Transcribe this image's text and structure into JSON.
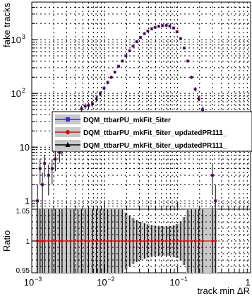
{
  "chart_data": [
    {
      "type": "scatter",
      "title": "",
      "ylabel": "fake tracks",
      "xlabel": "",
      "xscale": "log",
      "yscale": "log",
      "xlim": [
        0.001,
        1
      ],
      "ylim": [
        0.7,
        5000
      ],
      "grid": true,
      "x_ticks": [
        {
          "base": "10",
          "exp": "−3"
        },
        {
          "base": "10",
          "exp": "−2"
        },
        {
          "base": "10",
          "exp": "−1"
        },
        {
          "base": "1",
          "exp": ""
        }
      ],
      "y_ticks": [
        {
          "value": 1,
          "base": "1",
          "exp": ""
        },
        {
          "value": 10,
          "base": "10",
          "exp": ""
        },
        {
          "value": 100,
          "base": "10",
          "exp": "2"
        },
        {
          "value": 1000,
          "base": "10",
          "exp": "3"
        }
      ],
      "legend": {
        "placement": "center-right",
        "entries": [
          "DQM_ttbarPU_mkFit_5iter",
          "DQM_ttbarPU_mkFit_5iter_updatedPR111_",
          "DQM_ttbarPU_mkFit_5iter_updatedPR111_"
        ]
      },
      "series": [
        {
          "color": "#3030d0",
          "marker": "square",
          "points": [
            [
              0.0012,
              1
            ],
            [
              0.0013,
              4
            ],
            [
              0.0014,
              2
            ],
            [
              0.0015,
              5
            ],
            [
              0.0017,
              3
            ],
            [
              0.0019,
              4
            ],
            [
              0.0021,
              6
            ],
            [
              0.0024,
              8
            ],
            [
              0.0026,
              10
            ],
            [
              0.003,
              16
            ],
            [
              0.0034,
              24
            ],
            [
              0.0038,
              30
            ],
            [
              0.0043,
              40
            ],
            [
              0.0048,
              52
            ],
            [
              0.0054,
              58
            ],
            [
              0.006,
              60
            ],
            [
              0.0068,
              64
            ],
            [
              0.0077,
              80
            ],
            [
              0.0087,
              100
            ],
            [
              0.0098,
              125
            ],
            [
              0.011,
              160
            ],
            [
              0.0123,
              200
            ],
            [
              0.0138,
              250
            ],
            [
              0.0155,
              320
            ],
            [
              0.0174,
              400
            ],
            [
              0.0195,
              500
            ],
            [
              0.022,
              620
            ],
            [
              0.0245,
              760
            ],
            [
              0.0275,
              920
            ],
            [
              0.031,
              1100
            ],
            [
              0.035,
              1300
            ],
            [
              0.039,
              1450
            ],
            [
              0.044,
              1600
            ],
            [
              0.049,
              1700
            ],
            [
              0.055,
              1780
            ],
            [
              0.062,
              1830
            ],
            [
              0.07,
              1850
            ],
            [
              0.078,
              1800
            ],
            [
              0.088,
              1650
            ],
            [
              0.098,
              1400
            ],
            [
              0.11,
              1050
            ],
            [
              0.123,
              700
            ],
            [
              0.138,
              400
            ],
            [
              0.155,
              200
            ],
            [
              0.174,
              120
            ],
            [
              0.195,
              80
            ],
            [
              0.22,
              50
            ],
            [
              0.3,
              3
            ],
            [
              0.33,
              1
            ]
          ]
        },
        {
          "color": "#d01010",
          "marker": "circle",
          "points": [
            [
              0.0012,
              1
            ],
            [
              0.0013,
              4
            ],
            [
              0.0014,
              2
            ],
            [
              0.0015,
              5
            ],
            [
              0.0017,
              3
            ],
            [
              0.0019,
              4
            ],
            [
              0.0021,
              6
            ],
            [
              0.0024,
              8
            ],
            [
              0.0026,
              10
            ],
            [
              0.003,
              16
            ],
            [
              0.0034,
              24
            ],
            [
              0.0038,
              30
            ],
            [
              0.0043,
              40
            ],
            [
              0.0048,
              52
            ],
            [
              0.0054,
              58
            ],
            [
              0.006,
              60
            ],
            [
              0.0068,
              64
            ],
            [
              0.0077,
              80
            ],
            [
              0.0087,
              100
            ],
            [
              0.0098,
              125
            ],
            [
              0.011,
              160
            ],
            [
              0.0123,
              200
            ],
            [
              0.0138,
              250
            ],
            [
              0.0155,
              320
            ],
            [
              0.0174,
              400
            ],
            [
              0.0195,
              500
            ],
            [
              0.022,
              620
            ],
            [
              0.0245,
              760
            ],
            [
              0.0275,
              920
            ],
            [
              0.031,
              1100
            ],
            [
              0.035,
              1300
            ],
            [
              0.039,
              1450
            ],
            [
              0.044,
              1600
            ],
            [
              0.049,
              1700
            ],
            [
              0.055,
              1780
            ],
            [
              0.062,
              1830
            ],
            [
              0.07,
              1850
            ],
            [
              0.078,
              1800
            ],
            [
              0.088,
              1650
            ],
            [
              0.098,
              1400
            ],
            [
              0.11,
              1050
            ],
            [
              0.123,
              700
            ],
            [
              0.138,
              400
            ],
            [
              0.155,
              200
            ],
            [
              0.174,
              120
            ],
            [
              0.195,
              80
            ],
            [
              0.22,
              50
            ],
            [
              0.3,
              3
            ],
            [
              0.33,
              1
            ]
          ]
        },
        {
          "color": "#000000",
          "marker": "triangle",
          "points": [
            [
              0.0012,
              1
            ],
            [
              0.0013,
              4
            ],
            [
              0.0014,
              2
            ],
            [
              0.0015,
              5
            ],
            [
              0.0017,
              3
            ],
            [
              0.0019,
              4
            ],
            [
              0.0021,
              6
            ],
            [
              0.0024,
              8
            ],
            [
              0.0026,
              10
            ],
            [
              0.003,
              16
            ],
            [
              0.0034,
              24
            ],
            [
              0.0038,
              30
            ],
            [
              0.0043,
              40
            ],
            [
              0.0048,
              52
            ],
            [
              0.0054,
              58
            ],
            [
              0.006,
              60
            ],
            [
              0.0068,
              64
            ],
            [
              0.0077,
              80
            ],
            [
              0.0087,
              100
            ],
            [
              0.0098,
              125
            ],
            [
              0.011,
              160
            ],
            [
              0.0123,
              200
            ],
            [
              0.0138,
              250
            ],
            [
              0.0155,
              320
            ],
            [
              0.0174,
              400
            ],
            [
              0.0195,
              500
            ],
            [
              0.022,
              620
            ],
            [
              0.0245,
              760
            ],
            [
              0.0275,
              920
            ],
            [
              0.031,
              1100
            ],
            [
              0.035,
              1300
            ],
            [
              0.039,
              1450
            ],
            [
              0.044,
              1600
            ],
            [
              0.049,
              1700
            ],
            [
              0.055,
              1780
            ],
            [
              0.062,
              1830
            ],
            [
              0.07,
              1850
            ],
            [
              0.078,
              1800
            ],
            [
              0.088,
              1650
            ],
            [
              0.098,
              1400
            ],
            [
              0.11,
              1050
            ],
            [
              0.123,
              700
            ],
            [
              0.138,
              400
            ],
            [
              0.155,
              200
            ],
            [
              0.174,
              120
            ],
            [
              0.195,
              80
            ],
            [
              0.22,
              50
            ],
            [
              0.3,
              3
            ],
            [
              0.33,
              1
            ]
          ]
        }
      ]
    },
    {
      "type": "scatter",
      "ylabel": "Ratio",
      "xlabel": "track min ΔR",
      "xscale": "log",
      "xlim": [
        0.001,
        1
      ],
      "ylim": [
        0.95,
        1.05
      ],
      "y_ticks": [
        "0.95",
        "1",
        "1.05"
      ],
      "grid": true,
      "ratio_value": 1.0,
      "error_band_color": "#c8c8c8"
    }
  ]
}
